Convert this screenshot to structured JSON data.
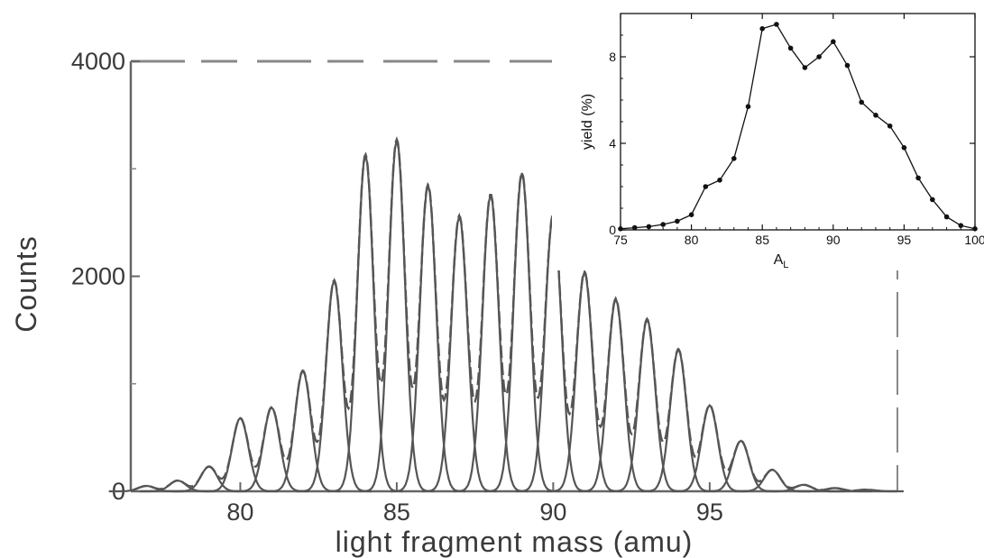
{
  "main_chart": {
    "type": "line",
    "xlabel": "light fragment mass (amu)",
    "ylabel": "Counts",
    "xlim": [
      76.5,
      101.0
    ],
    "ylim": [
      0,
      4000
    ],
    "xticks": [
      80,
      85,
      90,
      95
    ],
    "xtick_labels": [
      "80",
      "85",
      "90",
      "95"
    ],
    "yticks": [
      0,
      2000,
      4000
    ],
    "ytick_labels": [
      "0",
      "2000",
      "4000"
    ],
    "peak_width_sigma": 0.26,
    "color": "#555555"
  },
  "inset_chart": {
    "type": "line",
    "xlabel_main": "A",
    "xlabel_sub": "L",
    "ylabel": "yield (%)",
    "xlim": [
      75,
      100
    ],
    "ylim": [
      0,
      10
    ],
    "xticks": [
      75,
      80,
      85,
      90,
      95,
      100
    ],
    "xtick_labels": [
      "75",
      "80",
      "85",
      "90",
      "95",
      "100"
    ],
    "yticks": [
      0,
      4,
      8
    ],
    "ytick_labels": [
      "0",
      "4",
      "8"
    ],
    "color": "#111111"
  },
  "chart_data": [
    {
      "type": "line",
      "title": "",
      "xlabel": "light fragment mass (amu)",
      "ylabel": "Counts",
      "ylim": [
        0,
        4000
      ],
      "series": [
        {
          "x": [
            77,
            78,
            79,
            80,
            81,
            82,
            83,
            84,
            85,
            86,
            87,
            88,
            89,
            90,
            91,
            92,
            93,
            94,
            95,
            96,
            97,
            98,
            99,
            100
          ],
          "values": [
            50,
            100,
            230,
            680,
            780,
            1120,
            1960,
            3130,
            3270,
            2850,
            2560,
            2760,
            2960,
            2580,
            2040,
            1790,
            1600,
            1320,
            800,
            470,
            200,
            60,
            30,
            15
          ]
        }
      ]
    },
    {
      "type": "line",
      "title": "",
      "xlabel": "A_L",
      "ylabel": "yield (%)",
      "ylim": [
        0,
        10
      ],
      "series": [
        {
          "x": [
            75,
            76,
            77,
            78,
            79,
            80,
            81,
            82,
            83,
            84,
            85,
            86,
            87,
            88,
            89,
            90,
            91,
            92,
            93,
            94,
            95,
            96,
            97,
            98,
            99,
            100
          ],
          "values": [
            0.05,
            0.1,
            0.15,
            0.25,
            0.4,
            0.7,
            2.0,
            2.3,
            3.3,
            5.7,
            9.3,
            9.5,
            8.4,
            7.5,
            8.0,
            8.7,
            7.6,
            5.9,
            5.3,
            4.8,
            3.8,
            2.4,
            1.4,
            0.6,
            0.2,
            0.05
          ]
        }
      ]
    }
  ]
}
